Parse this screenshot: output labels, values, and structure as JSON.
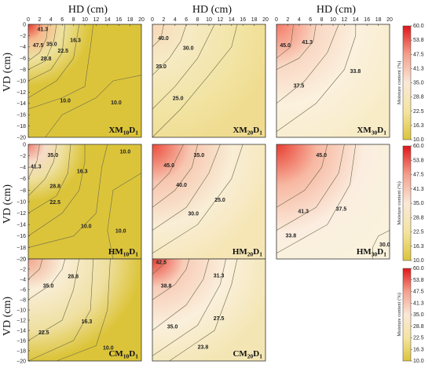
{
  "chart_data": {
    "type": "heatmap",
    "x_title": "HD (cm)",
    "y_title": "VD (cm)",
    "x_ticks": [
      "0",
      "2",
      "4",
      "6",
      "8",
      "10",
      "12",
      "14",
      "16",
      "18",
      "20"
    ],
    "y_ticks": [
      "0",
      "−2",
      "−4",
      "−6",
      "−8",
      "−10",
      "−12",
      "−14",
      "−16",
      "−18",
      "−20"
    ],
    "xlim": [
      0,
      20
    ],
    "ylim": [
      -20,
      0
    ],
    "colorbar": {
      "title": "Moisture content (%)",
      "ticks": [
        "60.0",
        "53.8",
        "47.5",
        "41.3",
        "35.0",
        "28.8",
        "22.5",
        "16.3",
        "10.0"
      ],
      "range": [
        10,
        60
      ]
    },
    "panels": [
      {
        "label_main": "XM",
        "label_sub1": "10",
        "label_main2": "D",
        "label_sub2": "1",
        "contours": [
          {
            "value": "41.3",
            "lx": 1.6,
            "ly": -1.2
          },
          {
            "value": "47.5",
            "lx": 0.8,
            "ly": -4.0
          },
          {
            "value": "35.0",
            "lx": 3.2,
            "ly": -3.8
          },
          {
            "value": "28.8",
            "lx": 2.2,
            "ly": -6.4
          },
          {
            "value": "22.5",
            "lx": 5.2,
            "ly": -5.0
          },
          {
            "value": "16.3",
            "lx": 7.4,
            "ly": -3.1
          },
          {
            "value": "10.0",
            "lx": 5.6,
            "ly": -13.8
          },
          {
            "value": "10.0",
            "lx": 14.6,
            "ly": -14.2
          }
        ]
      },
      {
        "label_main": "XM",
        "label_sub1": "20",
        "label_main2": "D",
        "label_sub2": "1",
        "contours": [
          {
            "value": "40.0",
            "lx": 1.0,
            "ly": -2.8
          },
          {
            "value": "35.0",
            "lx": 0.6,
            "ly": -7.8
          },
          {
            "value": "30.0",
            "lx": 5.4,
            "ly": -4.5
          },
          {
            "value": "25.0",
            "lx": 3.6,
            "ly": -13.4
          }
        ]
      },
      {
        "label_main": "XM",
        "label_sub1": "30",
        "label_main2": "D",
        "label_sub2": "1",
        "contours": [
          {
            "value": "45.0",
            "lx": 0.6,
            "ly": -4.0
          },
          {
            "value": "41.3",
            "lx": 4.5,
            "ly": -3.5
          },
          {
            "value": "37.5",
            "lx": 3.0,
            "ly": -11.2
          },
          {
            "value": "33.8",
            "lx": 13.0,
            "ly": -8.6
          }
        ]
      },
      {
        "label_main": "HM",
        "label_sub1": "10",
        "label_main2": "D",
        "label_sub2": "1",
        "contours": [
          {
            "value": "41.3",
            "lx": 0.4,
            "ly": -4.2
          },
          {
            "value": "35.0",
            "lx": 3.4,
            "ly": -2.2
          },
          {
            "value": "28.8",
            "lx": 3.8,
            "ly": -7.6
          },
          {
            "value": "22.5",
            "lx": 3.8,
            "ly": -10.4
          },
          {
            "value": "16.3",
            "lx": 8.6,
            "ly": -5.0
          },
          {
            "value": "10.0",
            "lx": 9.3,
            "ly": -14.6
          },
          {
            "value": "10.0",
            "lx": 16.2,
            "ly": -1.6
          },
          {
            "value": "10.0",
            "lx": 15.4,
            "ly": -15.4
          }
        ]
      },
      {
        "label_main": "HM",
        "label_sub1": "20",
        "label_main2": "D",
        "label_sub2": "1",
        "contours": [
          {
            "value": "45.0",
            "lx": 2.0,
            "ly": -4.0
          },
          {
            "value": "35.0",
            "lx": 7.3,
            "ly": -2.2
          },
          {
            "value": "40.0",
            "lx": 4.2,
            "ly": -7.4
          },
          {
            "value": "25.0",
            "lx": 11.0,
            "ly": -10.0
          },
          {
            "value": "30.0",
            "lx": 6.3,
            "ly": -12.4
          }
        ]
      },
      {
        "label_main": "HM",
        "label_sub1": "30",
        "label_main2": "D",
        "label_sub2": "1",
        "contours": [
          {
            "value": "45.0",
            "lx": 7.0,
            "ly": -2.2
          },
          {
            "value": "37.5",
            "lx": 10.5,
            "ly": -11.6
          },
          {
            "value": "41.3",
            "lx": 3.8,
            "ly": -12.0
          },
          {
            "value": "33.8",
            "lx": 1.6,
            "ly": -16.2
          },
          {
            "value": "30.0",
            "lx": 18.2,
            "ly": -17.8
          }
        ]
      },
      {
        "label_main": "CM",
        "label_sub1": "10",
        "label_main2": "D",
        "label_sub2": "1",
        "contours": [
          {
            "value": "35.0",
            "lx": 2.6,
            "ly": -5.6
          },
          {
            "value": "28.8",
            "lx": 7.0,
            "ly": -3.8
          },
          {
            "value": "22.5",
            "lx": 1.8,
            "ly": -14.8
          },
          {
            "value": "16.3",
            "lx": 9.4,
            "ly": -12.6
          },
          {
            "value": "10.0",
            "lx": 13.2,
            "ly": -17.8
          }
        ]
      },
      {
        "label_main": "CM",
        "label_sub1": "20",
        "label_main2": "D",
        "label_sub2": "1",
        "contours": [
          {
            "value": "42.5",
            "lx": 0.6,
            "ly": -1.0
          },
          {
            "value": "38.8",
            "lx": 1.5,
            "ly": -5.6
          },
          {
            "value": "31.3",
            "lx": 10.8,
            "ly": -3.6
          },
          {
            "value": "35.0",
            "lx": 2.6,
            "ly": -13.6
          },
          {
            "value": "27.5",
            "lx": 10.8,
            "ly": -12.0
          },
          {
            "value": "23.8",
            "lx": 8.0,
            "ly": -17.6
          }
        ]
      }
    ]
  }
}
